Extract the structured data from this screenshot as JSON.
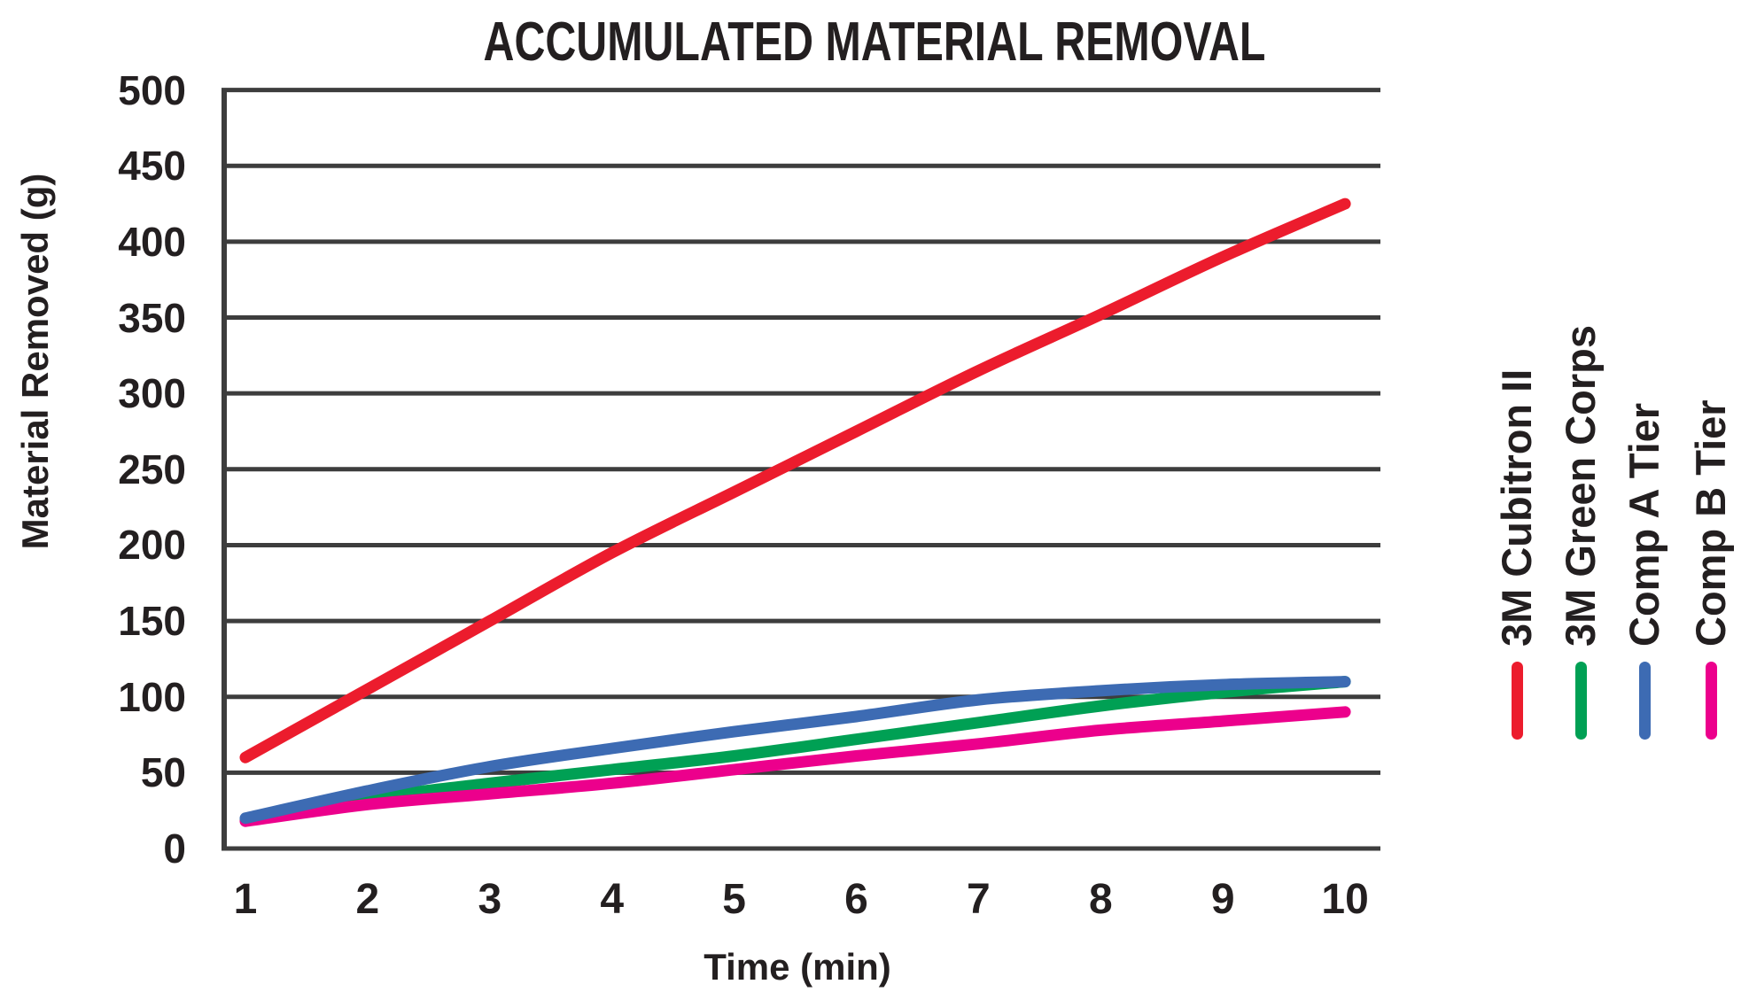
{
  "title": "ACCUMULATED MATERIAL REMOVAL",
  "chart_data": {
    "type": "line",
    "title": "ACCUMULATED MATERIAL REMOVAL",
    "xlabel": "Time (min)",
    "ylabel": "Material Removed (g)",
    "x": [
      1,
      2,
      3,
      4,
      5,
      6,
      7,
      8,
      9,
      10
    ],
    "x_tick_labels": [
      "1",
      "2",
      "3",
      "4",
      "5",
      "6",
      "7",
      "8",
      "9",
      "10"
    ],
    "y_tick_values": [
      0,
      50,
      100,
      150,
      200,
      250,
      300,
      350,
      400,
      450,
      500
    ],
    "ylim": [
      0,
      500
    ],
    "grid": "horizontal",
    "gridline_color": "#3d3d3d",
    "text_color": "#231f20",
    "legend_position": "right-vertical-rotated",
    "series": [
      {
        "name": "3M Cubitron II",
        "color": "#ec1c2d",
        "values": [
          60,
          105,
          150,
          195,
          235,
          275,
          315,
          352,
          390,
          425
        ]
      },
      {
        "name": "3M Green Corps",
        "color": "#00a054",
        "values": [
          19,
          33,
          43,
          52,
          61,
          72,
          83,
          94,
          103,
          110
        ]
      },
      {
        "name": "Comp A Tier",
        "color": "#3d6bb3",
        "values": [
          20,
          38,
          54,
          66,
          77,
          87,
          98,
          104,
          108,
          110
        ]
      },
      {
        "name": "Comp B Tier",
        "color": "#ec008c",
        "values": [
          18,
          29,
          36,
          43,
          52,
          61,
          69,
          78,
          84,
          90
        ]
      }
    ]
  }
}
